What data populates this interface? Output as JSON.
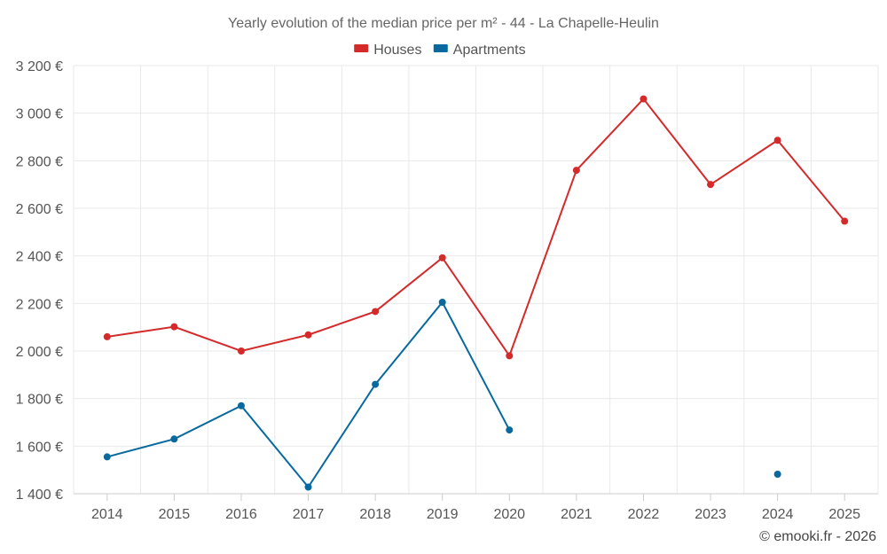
{
  "chart_data": {
    "type": "line",
    "title": "Yearly evolution of the median price per m² - 44 - La Chapelle-Heulin",
    "x": [
      "2014",
      "2015",
      "2016",
      "2017",
      "2018",
      "2019",
      "2020",
      "2021",
      "2022",
      "2023",
      "2024",
      "2025"
    ],
    "ylim": [
      1400,
      3200
    ],
    "yticks": [
      1400,
      1600,
      1800,
      2000,
      2200,
      2400,
      2600,
      2800,
      3000,
      3200
    ],
    "ytick_labels": [
      "1 400 €",
      "1 600 €",
      "1 800 €",
      "2 000 €",
      "2 200 €",
      "2 400 €",
      "2 600 €",
      "2 800 €",
      "3 000 €",
      "3 200 €"
    ],
    "grid": true,
    "legend_position": "top-center",
    "series": [
      {
        "name": "Houses",
        "color": "#d42a2a",
        "values": [
          2060,
          2102,
          2000,
          2068,
          2166,
          2392,
          1980,
          2760,
          3060,
          2700,
          2886,
          2546
        ]
      },
      {
        "name": "Apartments",
        "color": "#07699e",
        "values": [
          1555,
          1630,
          1770,
          1428,
          1860,
          2205,
          1668,
          null,
          null,
          null,
          1482,
          null
        ]
      }
    ]
  },
  "credit": "© emooki.fr - 2026"
}
